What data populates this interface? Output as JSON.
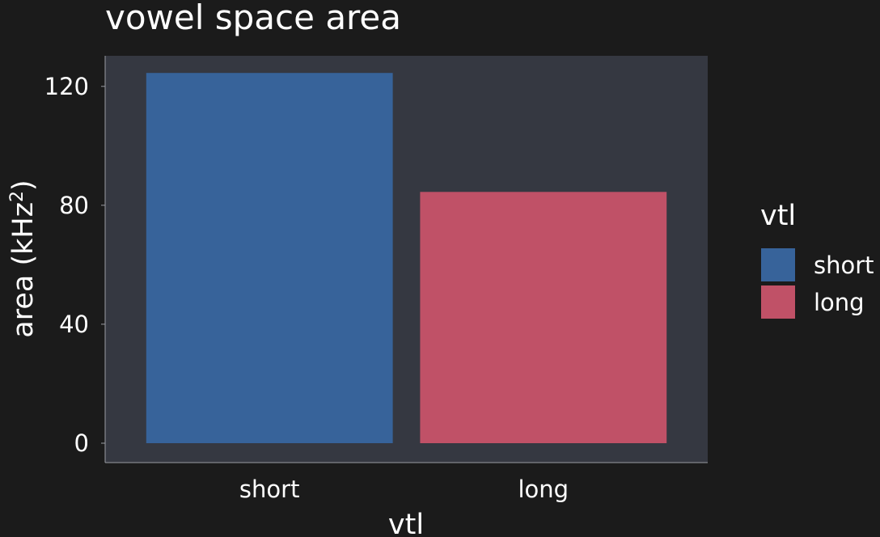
{
  "chart_data": {
    "type": "bar",
    "title": "vowel space area",
    "xlabel": "vtl",
    "ylabel": "area (kHz",
    "ylabel_superscript": "2",
    "ylabel_close": ")",
    "categories": [
      "short",
      "long"
    ],
    "values": [
      124.5,
      84.5
    ],
    "colors": [
      "#37639a",
      "#c05167"
    ],
    "ylim": [
      0,
      130
    ],
    "yticks": [
      0,
      40,
      80,
      120
    ],
    "ytick_labels": [
      "0",
      "40",
      "80",
      "120"
    ],
    "grid": false,
    "legend": {
      "title": "vtl",
      "placement": "right",
      "entries": [
        {
          "label": "short",
          "color": "#37639a"
        },
        {
          "label": "long",
          "color": "#c05167"
        }
      ]
    },
    "panel_color": "#353841",
    "background_color": "#1b1b1b"
  }
}
